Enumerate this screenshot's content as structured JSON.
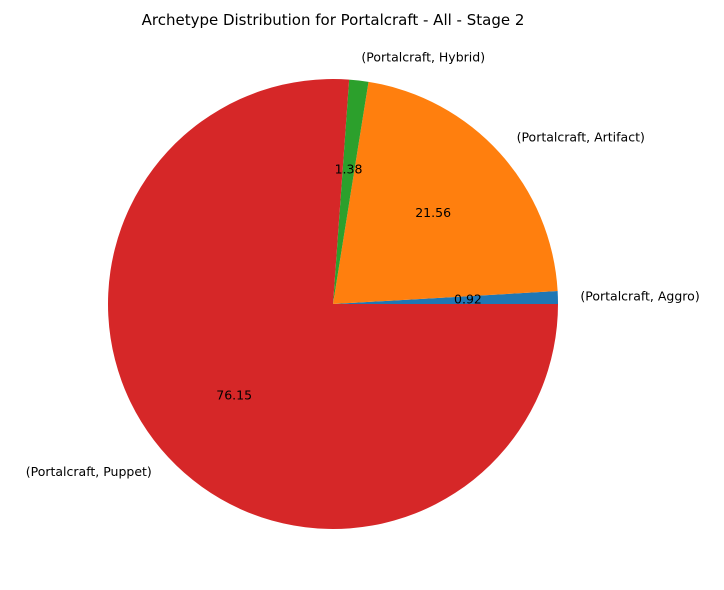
{
  "chart_data": {
    "type": "pie",
    "title": "Archetype Distribution for Portalcraft - All - Stage 2",
    "categories": [
      "(Portalcraft, Aggro)",
      "(Portalcraft, Artifact)",
      "(Portalcraft, Hybrid)",
      "(Portalcraft, Puppet)"
    ],
    "values": [
      0.92,
      21.56,
      1.38,
      76.15
    ],
    "value_labels": [
      "0.92",
      "21.56",
      "1.38",
      "76.15"
    ],
    "colors": [
      "#1f77b4",
      "#ff7f0e",
      "#2ca02c",
      "#d62728"
    ],
    "start_angle_deg": 0,
    "direction": "counterclockwise",
    "legend": "none"
  }
}
